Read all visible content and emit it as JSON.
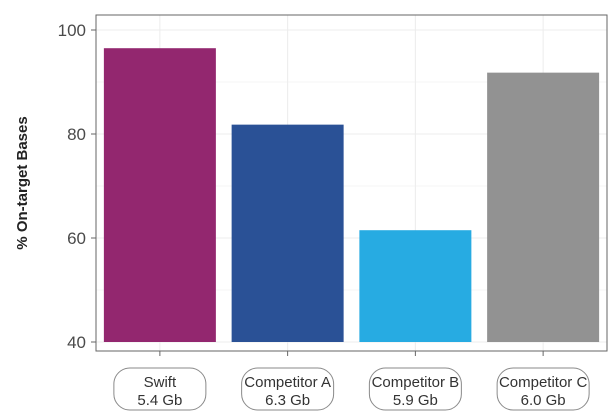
{
  "chart_data": {
    "type": "bar",
    "ylabel": "% On-target Bases",
    "ylim": [
      40,
      100
    ],
    "yticks": [
      40,
      60,
      80,
      100
    ],
    "grid": true,
    "categories": [
      {
        "name": "Swift",
        "sub": "5.4 Gb",
        "value": 96.5,
        "color": "#93276f"
      },
      {
        "name": "Competitor A",
        "sub": "6.3 Gb",
        "value": 81.8,
        "color": "#2a5196"
      },
      {
        "name": "Competitor B",
        "sub": "5.9 Gb",
        "value": 61.5,
        "color": "#27abe2"
      },
      {
        "name": "Competitor C",
        "sub": "6.0 Gb",
        "value": 91.8,
        "color": "#929292"
      }
    ]
  }
}
